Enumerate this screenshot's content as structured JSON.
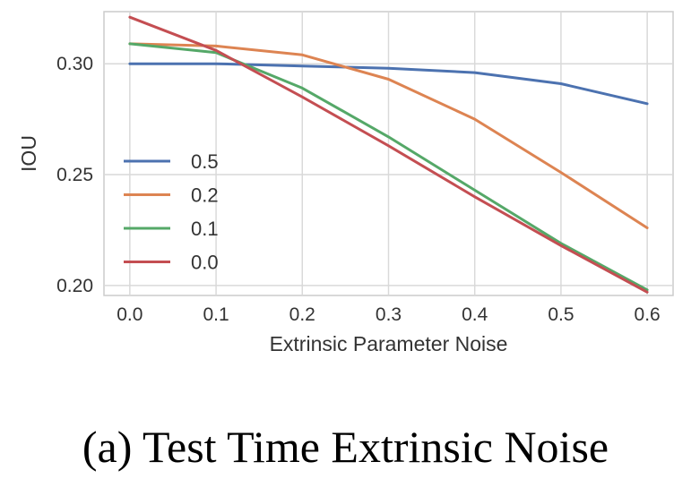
{
  "caption": "(a) Test Time Extrinsic Noise",
  "chart_data": {
    "type": "line",
    "xlabel": "Extrinsic Parameter Noise",
    "ylabel": "IOU",
    "x": [
      0.0,
      0.1,
      0.2,
      0.3,
      0.4,
      0.5,
      0.6
    ],
    "xticks": [
      "0.0",
      "0.1",
      "0.2",
      "0.3",
      "0.4",
      "0.5",
      "0.6"
    ],
    "yticks": [
      "0.20",
      "0.25",
      "0.30"
    ],
    "yticks_values": [
      0.2,
      0.25,
      0.3
    ],
    "xlim": [
      -0.03,
      0.63
    ],
    "ylim": [
      0.1955,
      0.3235
    ],
    "grid": true,
    "legend_position": "center-left",
    "series": [
      {
        "name": "0.5",
        "color": "#4c72b0",
        "values": [
          0.3,
          0.3,
          0.299,
          0.298,
          0.296,
          0.291,
          0.282
        ]
      },
      {
        "name": "0.2",
        "color": "#dd8452",
        "values": [
          0.309,
          0.308,
          0.304,
          0.293,
          0.275,
          0.251,
          0.226
        ]
      },
      {
        "name": "0.1",
        "color": "#55a868",
        "values": [
          0.309,
          0.305,
          0.289,
          0.267,
          0.243,
          0.219,
          0.198
        ]
      },
      {
        "name": "0.0",
        "color": "#c44e52",
        "values": [
          0.321,
          0.306,
          0.285,
          0.263,
          0.24,
          0.218,
          0.197
        ]
      }
    ]
  }
}
